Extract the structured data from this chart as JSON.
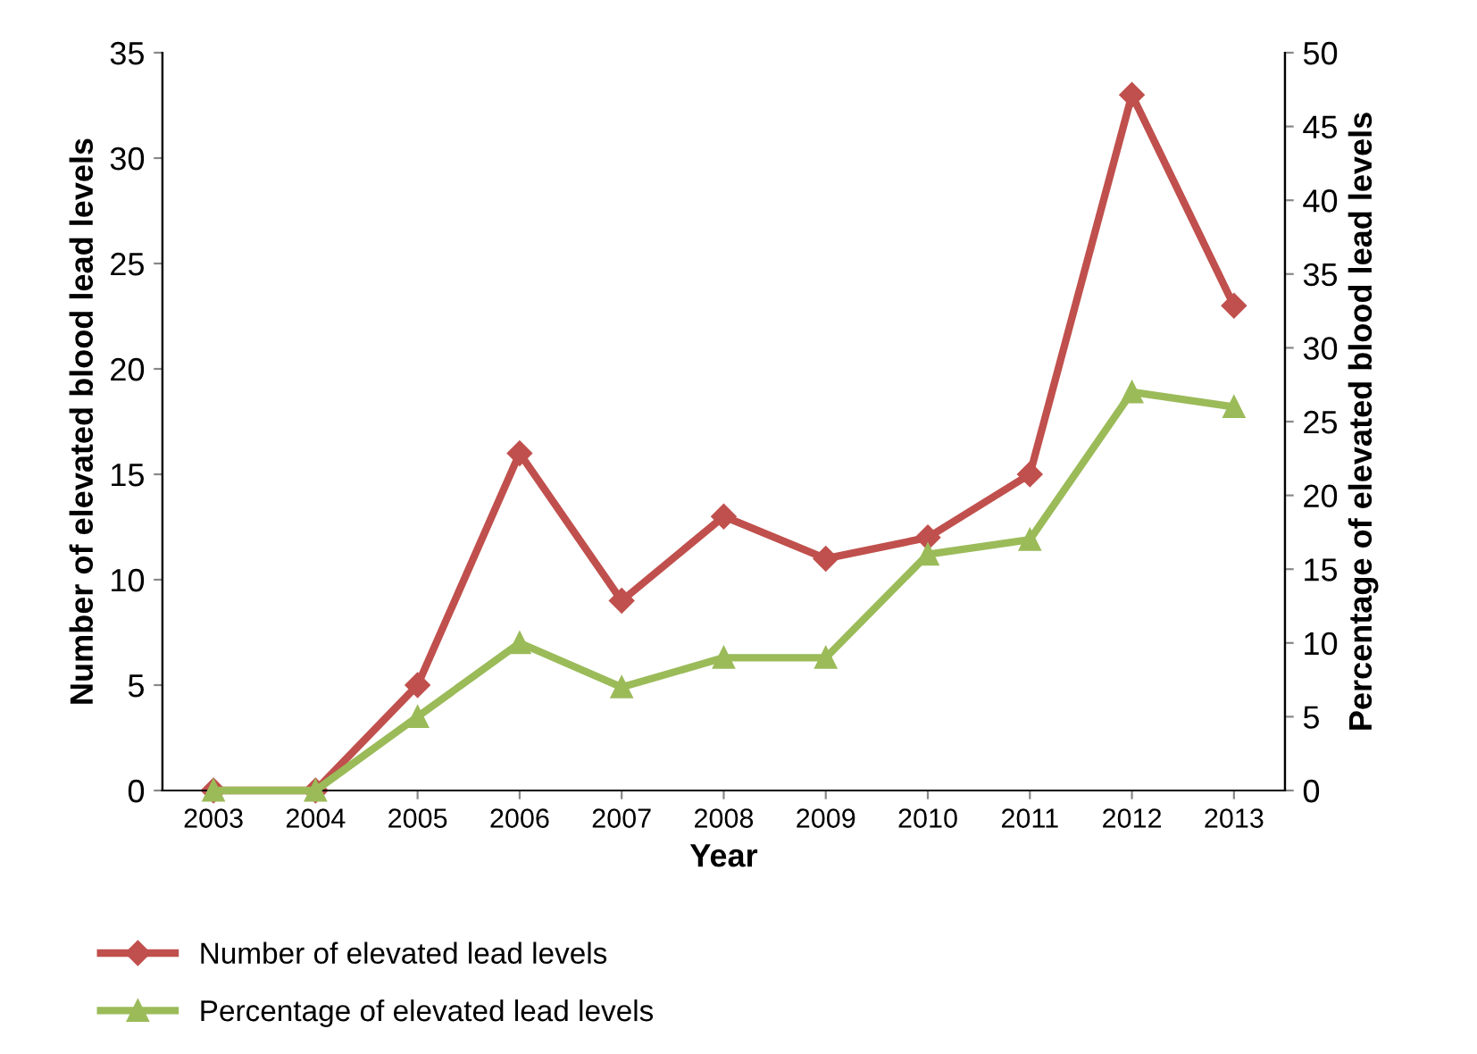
{
  "chart_data": {
    "type": "line",
    "xlabel": "Year",
    "ylabel": "Number of elevated blood lead levels",
    "y2label": "Percentage of elevated blood lead levels",
    "categories": [
      "2003",
      "2004",
      "2005",
      "2006",
      "2007",
      "2008",
      "2009",
      "2010",
      "2011",
      "2012",
      "2013"
    ],
    "series": [
      {
        "name": "Number of elevated lead levels",
        "color": "#c0504d",
        "marker": "diamond",
        "values": [
          0,
          0,
          5,
          16,
          9,
          13,
          11,
          12,
          15,
          33,
          23
        ]
      },
      {
        "name": "Percentage of elevated lead levels",
        "color": "#9bbb59",
        "marker": "triangle",
        "axis": "y2",
        "values": [
          0,
          0,
          5,
          10,
          7,
          9,
          9,
          16,
          17,
          27,
          26
        ]
      }
    ],
    "ylim": [
      0,
      35
    ],
    "yticks": [
      0,
      5,
      10,
      15,
      20,
      25,
      30,
      35
    ],
    "y2lim": [
      0,
      50
    ],
    "y2ticks": [
      0,
      5,
      10,
      15,
      20,
      25,
      30,
      35,
      40,
      45,
      50
    ],
    "grid": false,
    "legend": "bottom",
    "line_style": "solid"
  }
}
